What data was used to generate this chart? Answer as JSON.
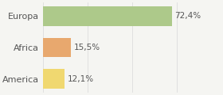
{
  "categories": [
    "Europa",
    "Africa",
    "America"
  ],
  "values": [
    72.4,
    15.5,
    12.1
  ],
  "labels": [
    "72,4%",
    "15,5%",
    "12,1%"
  ],
  "bar_colors": [
    "#adc98a",
    "#e8a86e",
    "#f0d870"
  ],
  "background_color": "#f5f5f2",
  "xlim": [
    0,
    100
  ],
  "bar_height": 0.62,
  "label_fontsize": 7.5,
  "ylabel_fontsize": 8.0
}
